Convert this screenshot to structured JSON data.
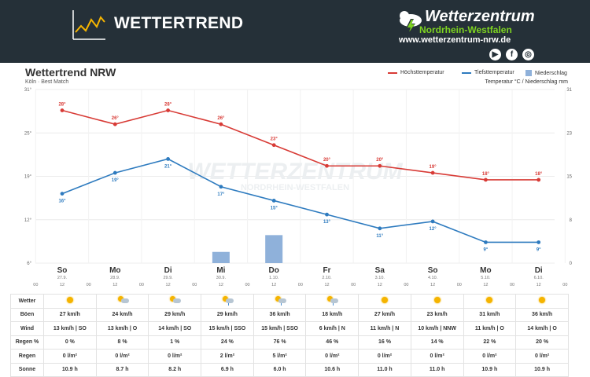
{
  "header": {
    "title": "WETTERTREND",
    "brand_name": "Wetterzentrum",
    "brand_region": "Nordrhein-Westfalen",
    "brand_url": "www.wetterzentrum-nrw.de",
    "social_icons": [
      "video-icon",
      "facebook-icon",
      "instagram-icon"
    ],
    "bg_color": "#253038",
    "accent_color": "#7ed321"
  },
  "chart_data": {
    "type": "line",
    "title": "Wettertrend NRW",
    "subtitle": "Köln · Best Match",
    "unit_label": "Temperatur °C / Niederschlag mm",
    "categories": [
      "So",
      "Mo",
      "Di",
      "Mi",
      "Do",
      "Fr",
      "Sa",
      "So",
      "Mo",
      "Di"
    ],
    "dates": [
      "27.9.",
      "28.9.",
      "29.9.",
      "30.9.",
      "1.10.",
      "2.10.",
      "3.10.",
      "4.10.",
      "5.10.",
      "6.10."
    ],
    "tick_label": "12",
    "small_tick_label": "00",
    "yticks_left": [
      "31°",
      "25°",
      "19°",
      "12°",
      "6°"
    ],
    "yticks_right": [
      "31",
      "23",
      "15",
      "8",
      "0"
    ],
    "ylim_left": [
      6,
      31
    ],
    "ylim_right": [
      0,
      31
    ],
    "series": [
      {
        "name": "Höchsttemperatur",
        "color": "#d83b36",
        "values": [
          28,
          26,
          28,
          26,
          23,
          20,
          20,
          19,
          18,
          18
        ],
        "labels": [
          "28°",
          "26°",
          "28°",
          "26°",
          "23°",
          "20°",
          "20°",
          "19°",
          "18°",
          "18°"
        ]
      },
      {
        "name": "Tiefsttemperatur",
        "color": "#2e7bbf",
        "values": [
          16,
          19,
          21,
          17,
          15,
          13,
          11,
          12,
          9,
          9
        ],
        "labels": [
          "16°",
          "19°",
          "21°",
          "17°",
          "15°",
          "13°",
          "11°",
          "12°",
          "9°",
          "9°"
        ]
      },
      {
        "name": "Niederschlag",
        "color": "#8fb1da",
        "type": "bar",
        "values": [
          0,
          0,
          0,
          2,
          5,
          0,
          0,
          0,
          0,
          0
        ]
      }
    ],
    "grid": true
  },
  "table": {
    "rows": [
      {
        "label": "Wetter",
        "icons": [
          "sun",
          "partly-cloudy",
          "partly-cloudy",
          "rain-sun",
          "rain-sun",
          "rain-sun",
          "sun",
          "sun",
          "sun",
          "sun"
        ]
      },
      {
        "label": "Böen",
        "values": [
          "27 km/h",
          "24 km/h",
          "29 km/h",
          "29 km/h",
          "36 km/h",
          "18 km/h",
          "27 km/h",
          "23 km/h",
          "31 km/h",
          "36 km/h"
        ]
      },
      {
        "label": "Wind",
        "values": [
          "13 km/h | SO",
          "13 km/h | O",
          "14 km/h | SO",
          "15 km/h | SSO",
          "15 km/h | SSO",
          "6 km/h | N",
          "11 km/h | N",
          "10 km/h | NNW",
          "11 km/h | O",
          "14 km/h | O"
        ]
      },
      {
        "label": "Regen %",
        "values": [
          "0 %",
          "8 %",
          "1 %",
          "24 %",
          "76 %",
          "46 %",
          "16 %",
          "14 %",
          "22 %",
          "20 %"
        ]
      },
      {
        "label": "Regen",
        "values": [
          "0 l/m²",
          "0 l/m²",
          "0 l/m²",
          "2 l/m²",
          "5 l/m²",
          "0 l/m²",
          "0 l/m²",
          "0 l/m²",
          "0 l/m²",
          "0 l/m²"
        ]
      },
      {
        "label": "Sonne",
        "values": [
          "10.9 h",
          "8.7 h",
          "8.2 h",
          "6.9 h",
          "6.0 h",
          "10.6 h",
          "11.0 h",
          "11.0 h",
          "10.9 h",
          "10.9 h"
        ]
      }
    ]
  }
}
